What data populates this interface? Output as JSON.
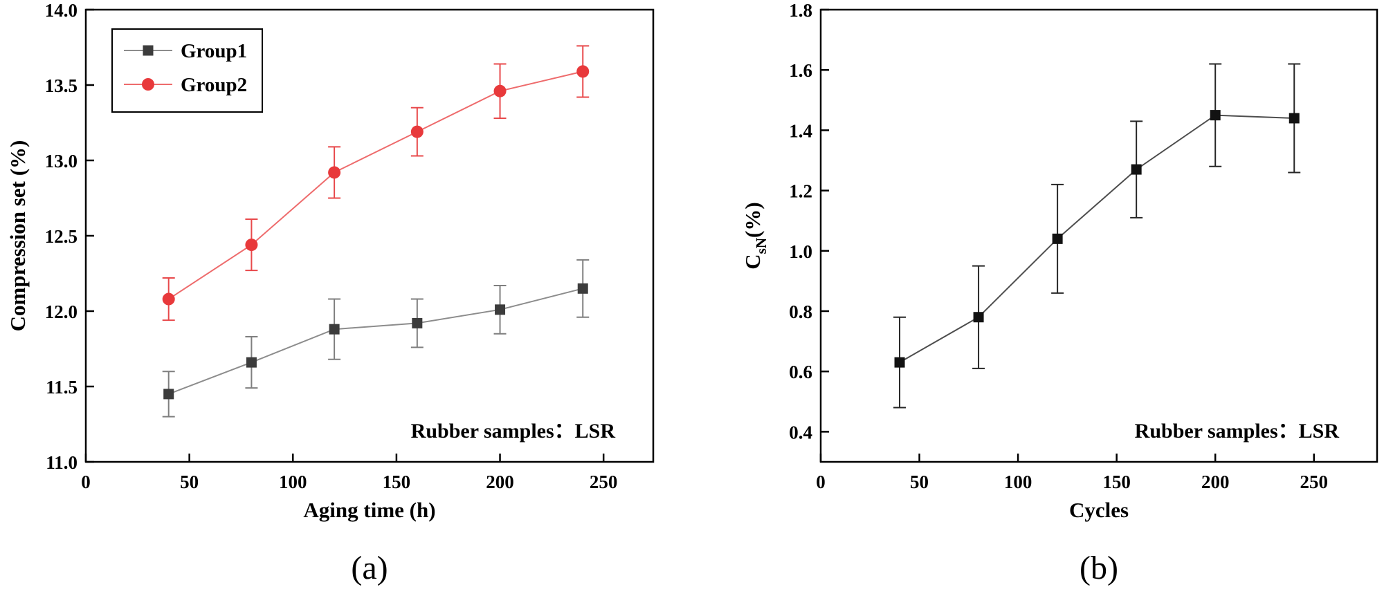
{
  "captions": {
    "a": "(a)",
    "b": "(b)"
  },
  "chart_data": [
    {
      "id": "chart-a",
      "type": "line",
      "title": "",
      "xlabel": "Aging time (h)",
      "ylabel": [
        {
          "text": "Compression set (%)"
        }
      ],
      "annotation": "Rubber samples：LSR",
      "xlim": [
        0,
        274
      ],
      "ylim": [
        11.0,
        14.0
      ],
      "xticks": [
        0,
        50,
        100,
        150,
        200,
        250
      ],
      "yticks": [
        11.0,
        11.5,
        12.0,
        12.5,
        13.0,
        13.5,
        14.0
      ],
      "xtick_decimals": 0,
      "ytick_decimals": 1,
      "grid": false,
      "legend": {
        "position": "top-left"
      },
      "x": [
        40,
        80,
        120,
        160,
        200,
        240
      ],
      "series": [
        {
          "name": "Group1",
          "marker": "square",
          "marker_color": "#3c3c3c",
          "line_color": "#8c8c8c",
          "error_color": "#7f7f7f",
          "values": [
            11.45,
            11.66,
            11.88,
            11.92,
            12.01,
            12.15
          ],
          "errors": [
            0.15,
            0.17,
            0.2,
            0.16,
            0.16,
            0.19
          ]
        },
        {
          "name": "Group2",
          "marker": "circle",
          "marker_color": "#e8393b",
          "line_color": "#ee6b6c",
          "error_color": "#e8494b",
          "values": [
            12.08,
            12.44,
            12.92,
            13.19,
            13.46,
            13.59
          ],
          "errors": [
            0.14,
            0.17,
            0.17,
            0.16,
            0.18,
            0.17
          ]
        }
      ]
    },
    {
      "id": "chart-b",
      "type": "line",
      "title": "",
      "xlabel": "Cycles",
      "ylabel": [
        {
          "text": "C"
        },
        {
          "text": "sN",
          "sub": true
        },
        {
          "text": "(%)"
        }
      ],
      "annotation": "Rubber samples：LSR",
      "xlim": [
        0,
        282
      ],
      "ylim": [
        0.3,
        1.8
      ],
      "xticks": [
        0,
        50,
        100,
        150,
        200,
        250
      ],
      "yticks": [
        0.4,
        0.6,
        0.8,
        1.0,
        1.2,
        1.4,
        1.6,
        1.8
      ],
      "xtick_decimals": 0,
      "ytick_decimals": 1,
      "grid": false,
      "legend": null,
      "x": [
        40,
        80,
        120,
        160,
        200,
        240
      ],
      "series": [
        {
          "name": "CsN",
          "marker": "square",
          "marker_color": "#121212",
          "line_color": "#4d4d4d",
          "error_color": "#262626",
          "values": [
            0.63,
            0.78,
            1.04,
            1.27,
            1.45,
            1.44
          ],
          "errors": [
            0.15,
            0.17,
            0.18,
            0.16,
            0.17,
            0.18
          ]
        }
      ]
    }
  ]
}
